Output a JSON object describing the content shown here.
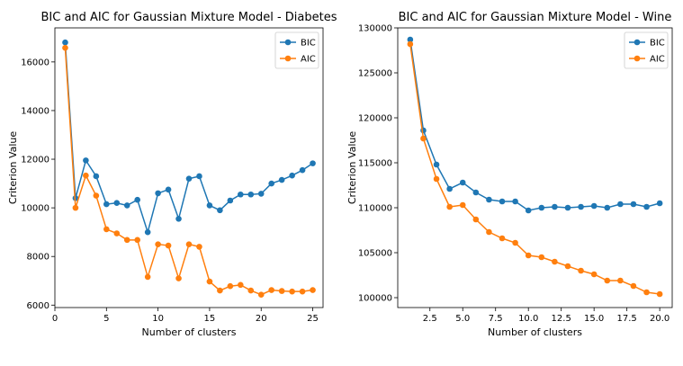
{
  "chart_data": [
    {
      "type": "line",
      "title": "BIC and AIC for Gaussian Mixture Model - Diabetes",
      "xlabel": "Number of clusters",
      "ylabel": "Criterion Value",
      "xlim": [
        0,
        26
      ],
      "ylim": [
        5900,
        17400
      ],
      "xticks": [
        0,
        5,
        10,
        15,
        20,
        25
      ],
      "xtick_labels": [
        "0",
        "5",
        "10",
        "15",
        "20",
        "25"
      ],
      "yticks": [
        6000,
        8000,
        10000,
        12000,
        14000,
        16000
      ],
      "ytick_labels": [
        "6000",
        "8000",
        "10000",
        "12000",
        "14000",
        "16000"
      ],
      "grid": false,
      "legend": "top-right",
      "x": [
        1,
        2,
        3,
        4,
        5,
        6,
        7,
        8,
        9,
        10,
        11,
        12,
        13,
        14,
        15,
        16,
        17,
        18,
        19,
        20,
        21,
        22,
        23,
        24,
        25
      ],
      "series": [
        {
          "name": "BIC",
          "color": "#1f77b4",
          "marker": "circle",
          "values": [
            16800,
            10400,
            11950,
            11300,
            10150,
            10200,
            10100,
            10330,
            9000,
            10600,
            10750,
            9550,
            11200,
            11300,
            10100,
            9900,
            10300,
            10550,
            10550,
            10580,
            11000,
            11150,
            11330,
            11550,
            11830
          ]
        },
        {
          "name": "AIC",
          "color": "#ff7f0e",
          "marker": "circle",
          "values": [
            16580,
            10000,
            11330,
            10500,
            9120,
            8950,
            8680,
            8680,
            7160,
            8500,
            8450,
            7100,
            8500,
            8400,
            6970,
            6600,
            6780,
            6830,
            6600,
            6430,
            6620,
            6580,
            6560,
            6560,
            6620
          ]
        }
      ]
    },
    {
      "type": "line",
      "title": "BIC and AIC for Gaussian Mixture Model - Wine",
      "xlabel": "Number of clusters",
      "ylabel": "Criterion Value",
      "xlim": [
        0.05,
        20.95
      ],
      "ylim": [
        98900,
        130000
      ],
      "xticks": [
        2.5,
        5,
        7.5,
        10,
        12.5,
        15,
        17.5,
        20
      ],
      "xtick_labels": [
        "2.5",
        "5.0",
        "7.5",
        "10.0",
        "12.5",
        "15.0",
        "17.5",
        "20.0"
      ],
      "yticks": [
        100000,
        105000,
        110000,
        115000,
        120000,
        125000,
        130000
      ],
      "ytick_labels": [
        "100000",
        "105000",
        "110000",
        "115000",
        "120000",
        "125000",
        "130000"
      ],
      "grid": false,
      "legend": "top-right",
      "x": [
        1,
        2,
        3,
        4,
        5,
        6,
        7,
        8,
        9,
        10,
        11,
        12,
        13,
        14,
        15,
        16,
        17,
        18,
        19,
        20
      ],
      "series": [
        {
          "name": "BIC",
          "color": "#1f77b4",
          "marker": "circle",
          "values": [
            128700,
            118600,
            114800,
            112100,
            112800,
            111700,
            110900,
            110700,
            110700,
            109700,
            110000,
            110100,
            110000,
            110100,
            110200,
            110000,
            110400,
            110400,
            110100,
            110500
          ]
        },
        {
          "name": "AIC",
          "color": "#ff7f0e",
          "marker": "circle",
          "values": [
            128200,
            117700,
            113200,
            110100,
            110300,
            108700,
            107300,
            106600,
            106100,
            104700,
            104500,
            104000,
            103500,
            103000,
            102600,
            101900,
            101900,
            101300,
            100600,
            100400
          ]
        }
      ]
    }
  ]
}
